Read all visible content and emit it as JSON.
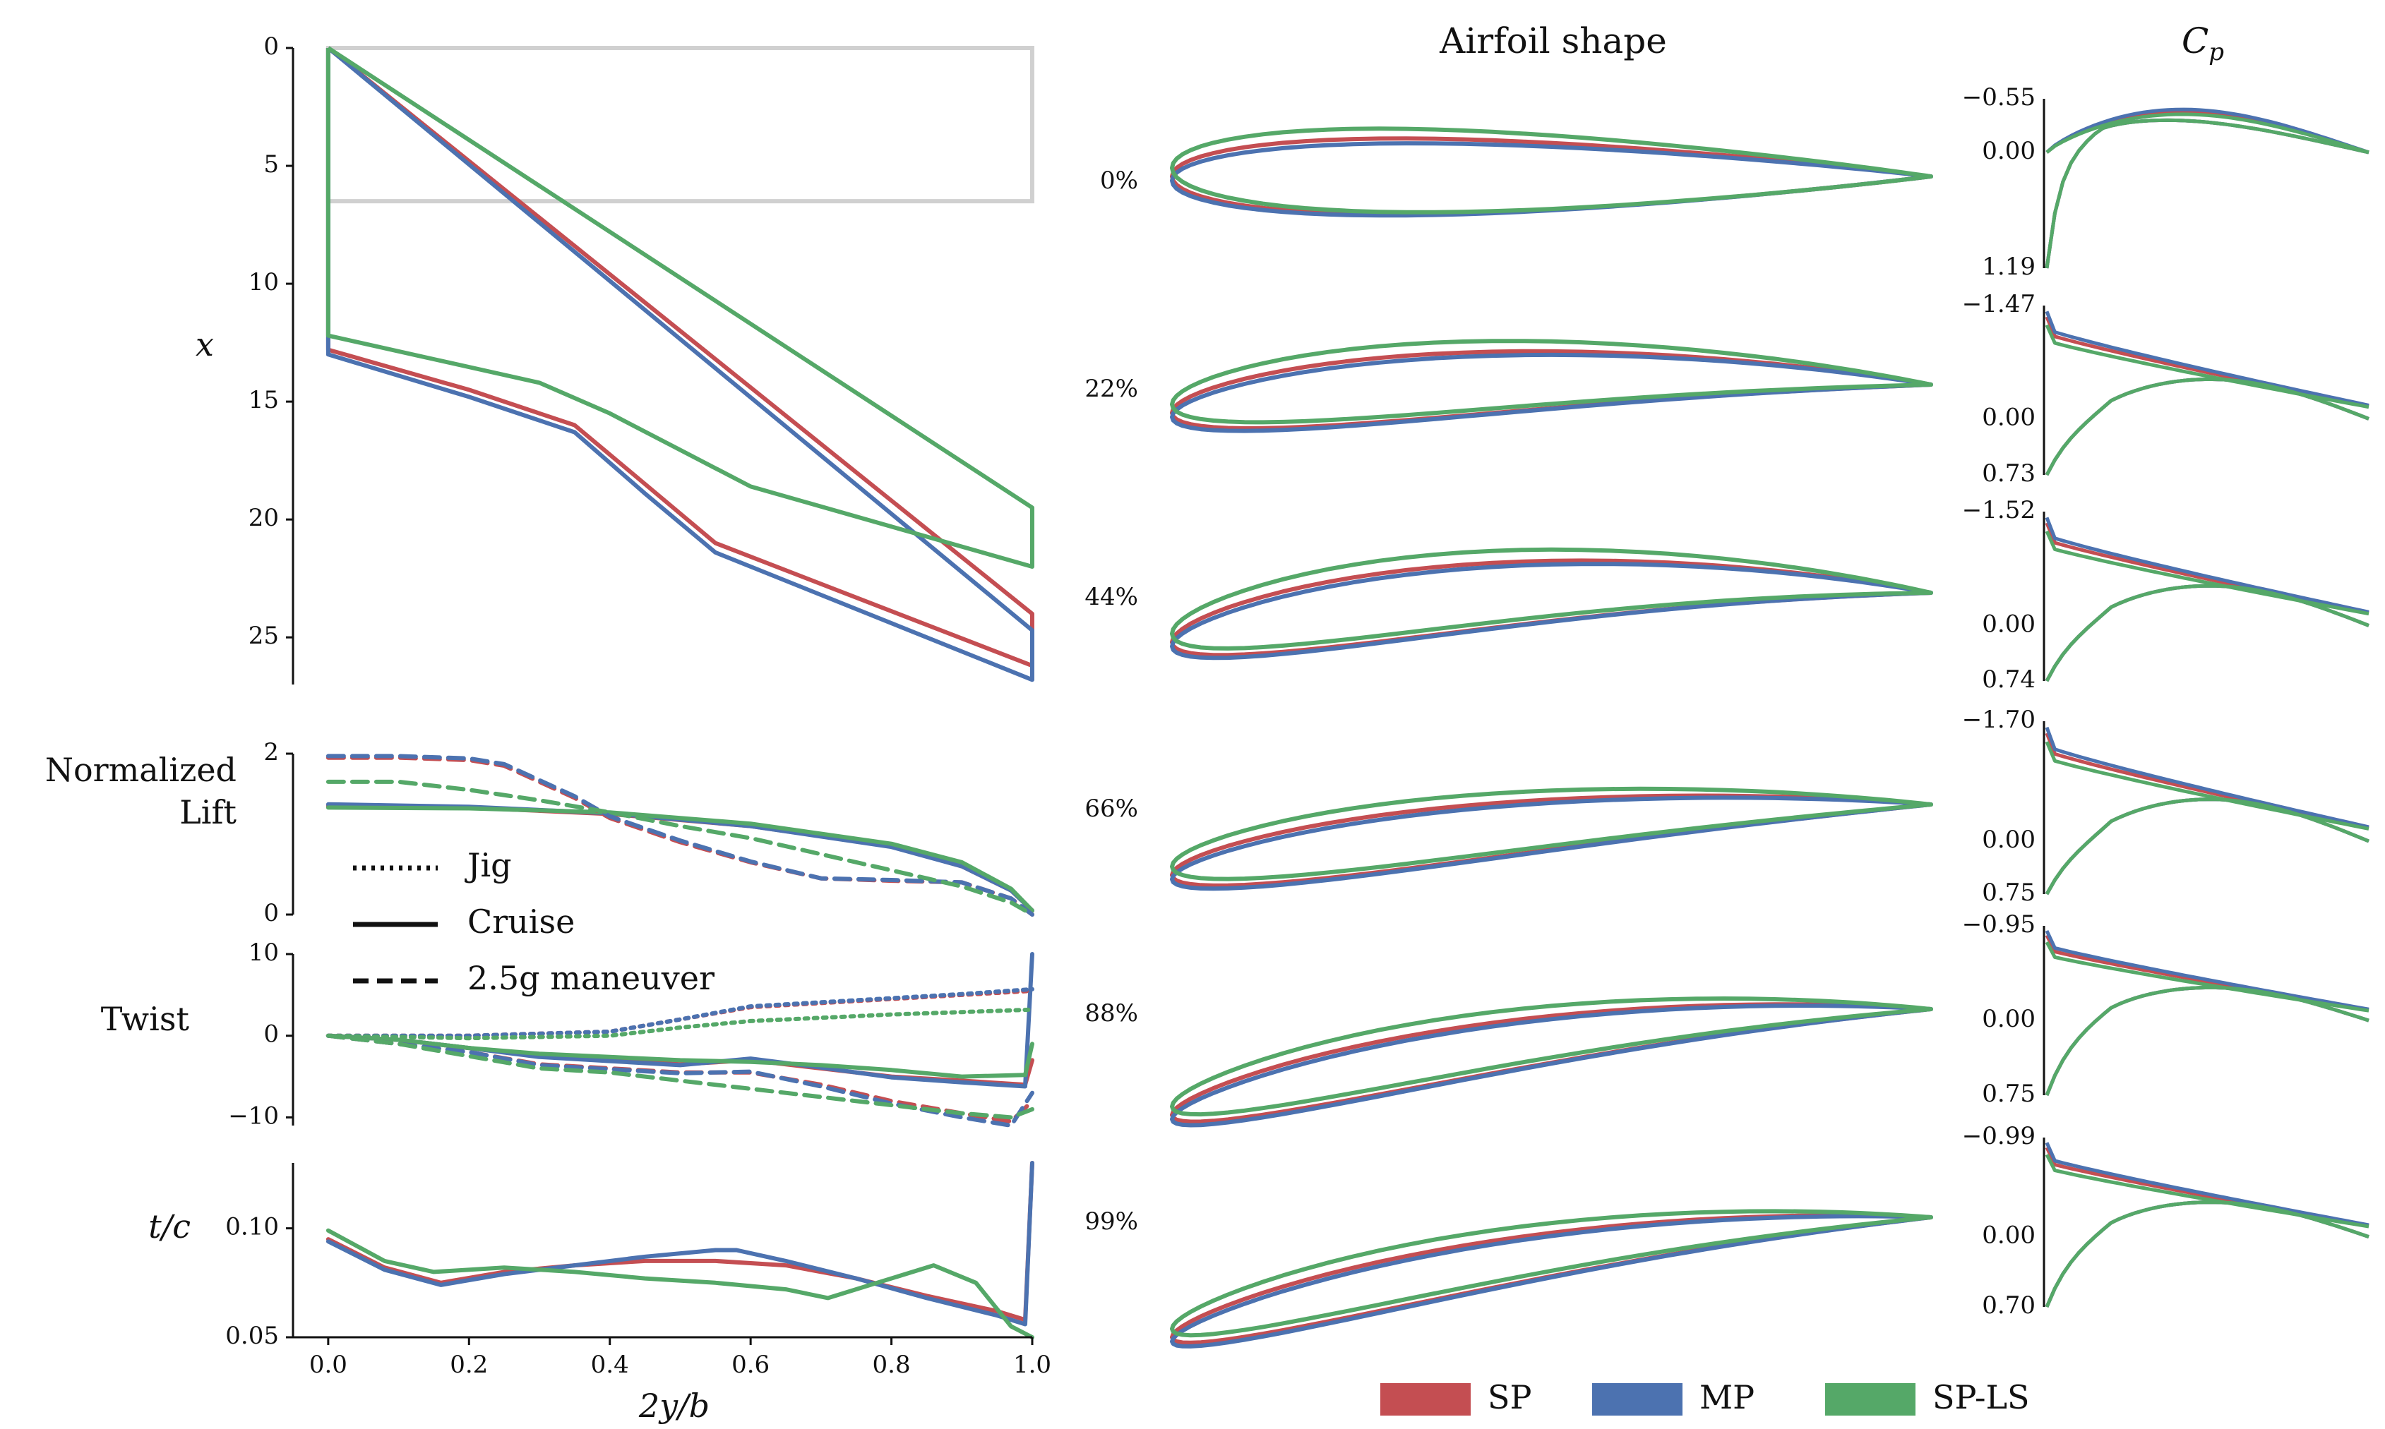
{
  "colors": {
    "SP": "#c44e52",
    "MP": "#4c72b0",
    "SP-LS": "#55a868",
    "frame": "#d0d0d0"
  },
  "legend_lines": {
    "items": [
      {
        "label": "Jig",
        "dash": "dotted"
      },
      {
        "label": "Cruise",
        "dash": "solid"
      },
      {
        "label": "2.5g maneuver",
        "dash": "dashed"
      }
    ]
  },
  "legend_colors": {
    "items": [
      {
        "label": "SP",
        "color": "#c44e52"
      },
      {
        "label": "MP",
        "color": "#4c72b0"
      },
      {
        "label": "SP-LS",
        "color": "#55a868"
      }
    ]
  },
  "chart_data": [
    {
      "id": "planform",
      "type": "line",
      "ylabel": "x",
      "ylim": [
        0,
        27
      ],
      "inverted_y": true,
      "xlim": [
        -0.05,
        1.0
      ],
      "yticks": [
        0,
        5,
        10,
        15,
        20,
        25
      ],
      "reference_frame": {
        "points": [
          [
            0,
            0
          ],
          [
            1.0,
            0
          ],
          [
            1.0,
            6.5
          ],
          [
            0,
            6.5
          ]
        ]
      },
      "series": [
        {
          "name": "SP",
          "outline": [
            [
              0,
              0
            ],
            [
              1.0,
              24.0
            ],
            [
              1.0,
              26.2
            ],
            [
              0.55,
              21.0
            ],
            [
              0.45,
              18.5
            ],
            [
              0.35,
              16.0
            ],
            [
              0.2,
              14.5
            ],
            [
              0,
              12.8
            ],
            [
              0,
              0
            ]
          ]
        },
        {
          "name": "MP",
          "outline": [
            [
              0,
              0
            ],
            [
              1.0,
              24.7
            ],
            [
              1.0,
              26.8
            ],
            [
              0.55,
              21.4
            ],
            [
              0.45,
              18.9
            ],
            [
              0.35,
              16.3
            ],
            [
              0.2,
              14.8
            ],
            [
              0,
              13.0
            ],
            [
              0,
              0
            ]
          ]
        },
        {
          "name": "SP-LS",
          "outline": [
            [
              0,
              0
            ],
            [
              1.0,
              19.5
            ],
            [
              1.0,
              22.0
            ],
            [
              0.6,
              18.6
            ],
            [
              0.4,
              15.5
            ],
            [
              0.3,
              14.2
            ],
            [
              0.15,
              13.2
            ],
            [
              0,
              12.2
            ],
            [
              0,
              0
            ]
          ]
        }
      ]
    },
    {
      "id": "lift",
      "type": "line",
      "ylabel": "Normalized Lift",
      "ylim": [
        0,
        2
      ],
      "yticks": [
        0,
        2
      ],
      "xlim": [
        -0.05,
        1.0
      ],
      "series": [
        {
          "name": "SP",
          "style": "solid",
          "x": [
            0,
            0.2,
            0.4,
            0.6,
            0.8,
            0.9,
            0.97,
            1.0
          ],
          "y": [
            1.35,
            1.33,
            1.25,
            1.1,
            0.85,
            0.6,
            0.3,
            0.05
          ]
        },
        {
          "name": "MP",
          "style": "solid",
          "x": [
            0,
            0.2,
            0.4,
            0.6,
            0.8,
            0.9,
            0.97,
            1.0
          ],
          "y": [
            1.37,
            1.34,
            1.26,
            1.1,
            0.84,
            0.6,
            0.3,
            0.05
          ]
        },
        {
          "name": "SP-LS",
          "style": "solid",
          "x": [
            0,
            0.2,
            0.4,
            0.6,
            0.8,
            0.9,
            0.97,
            1.0
          ],
          "y": [
            1.33,
            1.32,
            1.27,
            1.13,
            0.88,
            0.65,
            0.32,
            0.05
          ]
        },
        {
          "name": "SP",
          "style": "dashed",
          "x": [
            0,
            0.1,
            0.2,
            0.25,
            0.3,
            0.35,
            0.4,
            0.5,
            0.6,
            0.7,
            0.8,
            0.9,
            0.97,
            1.0
          ],
          "y": [
            1.95,
            1.95,
            1.92,
            1.85,
            1.65,
            1.45,
            1.2,
            0.9,
            0.65,
            0.45,
            0.42,
            0.4,
            0.2,
            0.0
          ]
        },
        {
          "name": "MP",
          "style": "dashed",
          "x": [
            0,
            0.1,
            0.2,
            0.25,
            0.3,
            0.35,
            0.4,
            0.5,
            0.6,
            0.7,
            0.8,
            0.9,
            0.97,
            1.0
          ],
          "y": [
            1.97,
            1.97,
            1.94,
            1.87,
            1.67,
            1.47,
            1.22,
            0.92,
            0.66,
            0.45,
            0.43,
            0.4,
            0.2,
            0.0
          ]
        },
        {
          "name": "SP-LS",
          "style": "dashed",
          "x": [
            0,
            0.1,
            0.2,
            0.3,
            0.4,
            0.5,
            0.6,
            0.7,
            0.8,
            0.9,
            0.97,
            1.0
          ],
          "y": [
            1.65,
            1.65,
            1.55,
            1.42,
            1.27,
            1.1,
            0.95,
            0.75,
            0.55,
            0.35,
            0.15,
            0.0
          ]
        }
      ]
    },
    {
      "id": "twist",
      "type": "line",
      "ylabel": "Twist",
      "ylim": [
        -11,
        10
      ],
      "yticks": [
        -10,
        0,
        10
      ],
      "xlim": [
        -0.05,
        1.0
      ],
      "series": [
        {
          "name": "SP",
          "style": "solid",
          "x": [
            0,
            0.1,
            0.2,
            0.3,
            0.4,
            0.5,
            0.6,
            0.7,
            0.8,
            0.9,
            0.99,
            1.0
          ],
          "y": [
            0,
            -0.5,
            -1.5,
            -2.5,
            -3,
            -3.5,
            -3,
            -4,
            -5,
            -5.5,
            -6,
            -3
          ]
        },
        {
          "name": "MP",
          "style": "solid",
          "x": [
            0,
            0.1,
            0.2,
            0.3,
            0.4,
            0.5,
            0.6,
            0.7,
            0.8,
            0.9,
            0.99,
            1.0
          ],
          "y": [
            0,
            -0.5,
            -1.5,
            -2.6,
            -3.1,
            -3.6,
            -2.8,
            -3.9,
            -5.1,
            -5.7,
            -6.2,
            10
          ]
        },
        {
          "name": "SP-LS",
          "style": "solid",
          "x": [
            0,
            0.1,
            0.2,
            0.3,
            0.4,
            0.5,
            0.6,
            0.7,
            0.8,
            0.9,
            0.99,
            1.0
          ],
          "y": [
            0,
            -0.5,
            -1.5,
            -2.2,
            -2.6,
            -3,
            -3.2,
            -3.6,
            -4.2,
            -5,
            -4.8,
            -1
          ]
        },
        {
          "name": "SP",
          "style": "dotted",
          "x": [
            0,
            0.2,
            0.4,
            0.5,
            0.6,
            0.7,
            0.8,
            0.9,
            1.0
          ],
          "y": [
            0,
            0,
            0.5,
            2,
            3.5,
            4,
            4.5,
            5,
            5.5
          ]
        },
        {
          "name": "MP",
          "style": "dotted",
          "x": [
            0,
            0.2,
            0.4,
            0.5,
            0.6,
            0.7,
            0.8,
            0.9,
            1.0
          ],
          "y": [
            0,
            0,
            0.5,
            2,
            3.6,
            4.1,
            4.6,
            5.1,
            5.7
          ]
        },
        {
          "name": "SP-LS",
          "style": "dotted",
          "x": [
            0,
            0.2,
            0.4,
            0.5,
            0.6,
            0.7,
            0.8,
            0.9,
            1.0
          ],
          "y": [
            0,
            -0.3,
            0,
            1,
            1.8,
            2.2,
            2.6,
            2.9,
            3.2
          ]
        },
        {
          "name": "SP",
          "style": "dashed",
          "x": [
            0,
            0.1,
            0.2,
            0.3,
            0.4,
            0.5,
            0.6,
            0.7,
            0.8,
            0.9,
            0.97,
            1.0
          ],
          "y": [
            0,
            -1,
            -2,
            -3.5,
            -4,
            -4.5,
            -4.5,
            -6,
            -8,
            -9.5,
            -10.5,
            -8
          ]
        },
        {
          "name": "MP",
          "style": "dashed",
          "x": [
            0,
            0.1,
            0.2,
            0.3,
            0.4,
            0.5,
            0.6,
            0.7,
            0.8,
            0.9,
            0.97,
            1.0
          ],
          "y": [
            0,
            -1,
            -2,
            -3.6,
            -4.1,
            -4.6,
            -4.4,
            -6.2,
            -8.3,
            -10,
            -11,
            -7
          ]
        },
        {
          "name": "SP-LS",
          "style": "dashed",
          "x": [
            0,
            0.1,
            0.2,
            0.3,
            0.4,
            0.5,
            0.6,
            0.7,
            0.8,
            0.9,
            0.97,
            1.0
          ],
          "y": [
            0,
            -1,
            -2.5,
            -4,
            -4.5,
            -5.5,
            -6.5,
            -7.5,
            -8.5,
            -9.5,
            -10,
            -9
          ]
        }
      ]
    },
    {
      "id": "thickness",
      "type": "line",
      "ylabel": "t/c",
      "xlabel": "2y/b",
      "ylim": [
        0.05,
        0.13
      ],
      "yticks": [
        0.05,
        0.1
      ],
      "yticklabels": [
        "0.05",
        "0.10"
      ],
      "xlim": [
        -0.05,
        1.0
      ],
      "xticks": [
        0,
        0.2,
        0.4,
        0.6,
        0.8,
        1.0
      ],
      "xticklabels": [
        "0.0",
        "0.2",
        "0.4",
        "0.6",
        "0.8",
        "1.0"
      ],
      "series": [
        {
          "name": "SP",
          "x": [
            0,
            0.08,
            0.16,
            0.25,
            0.35,
            0.45,
            0.55,
            0.65,
            0.75,
            0.85,
            0.95,
            0.99,
            1.0
          ],
          "y": [
            0.095,
            0.082,
            0.075,
            0.08,
            0.083,
            0.085,
            0.085,
            0.083,
            0.077,
            0.069,
            0.062,
            0.058,
            0.13
          ]
        },
        {
          "name": "MP",
          "x": [
            0,
            0.08,
            0.16,
            0.25,
            0.35,
            0.45,
            0.55,
            0.58,
            0.65,
            0.75,
            0.85,
            0.95,
            0.99,
            1.0
          ],
          "y": [
            0.094,
            0.081,
            0.074,
            0.079,
            0.083,
            0.087,
            0.09,
            0.09,
            0.085,
            0.077,
            0.068,
            0.06,
            0.056,
            0.13
          ]
        },
        {
          "name": "SP-LS",
          "x": [
            0,
            0.08,
            0.15,
            0.25,
            0.35,
            0.45,
            0.55,
            0.65,
            0.71,
            0.78,
            0.86,
            0.92,
            0.97,
            1.0
          ],
          "y": [
            0.099,
            0.085,
            0.08,
            0.082,
            0.08,
            0.077,
            0.075,
            0.072,
            0.068,
            0.075,
            0.083,
            0.075,
            0.055,
            0.05
          ]
        }
      ]
    },
    {
      "id": "airfoils",
      "type": "line",
      "title": "Airfoil shape",
      "row_labels": [
        "0%",
        "22%",
        "44%",
        "66%",
        "88%",
        "99%"
      ],
      "xlim": [
        0,
        1
      ]
    },
    {
      "id": "cp",
      "type": "line",
      "title": "Cp",
      "xlim": [
        0,
        1
      ],
      "panels": [
        {
          "span": "0%",
          "ylim_labels": [
            "−0.55",
            "0.00",
            "1.19"
          ],
          "top": -0.55,
          "bottom": 1.19
        },
        {
          "span": "22%",
          "ylim_labels": [
            "−1.47",
            "0.00",
            "0.73"
          ],
          "top": -1.47,
          "bottom": 0.73
        },
        {
          "span": "44%",
          "ylim_labels": [
            "−1.52",
            "0.00",
            "0.74"
          ],
          "top": -1.52,
          "bottom": 0.74
        },
        {
          "span": "66%",
          "ylim_labels": [
            "−1.70",
            "0.00",
            "0.75"
          ],
          "top": -1.7,
          "bottom": 0.75
        },
        {
          "span": "88%",
          "ylim_labels": [
            "−0.95",
            "0.00",
            "0.75"
          ],
          "top": -0.95,
          "bottom": 0.75
        },
        {
          "span": "99%",
          "ylim_labels": [
            "−0.99",
            "0.00",
            "0.70"
          ],
          "top": -0.99,
          "bottom": 0.7
        }
      ]
    }
  ]
}
